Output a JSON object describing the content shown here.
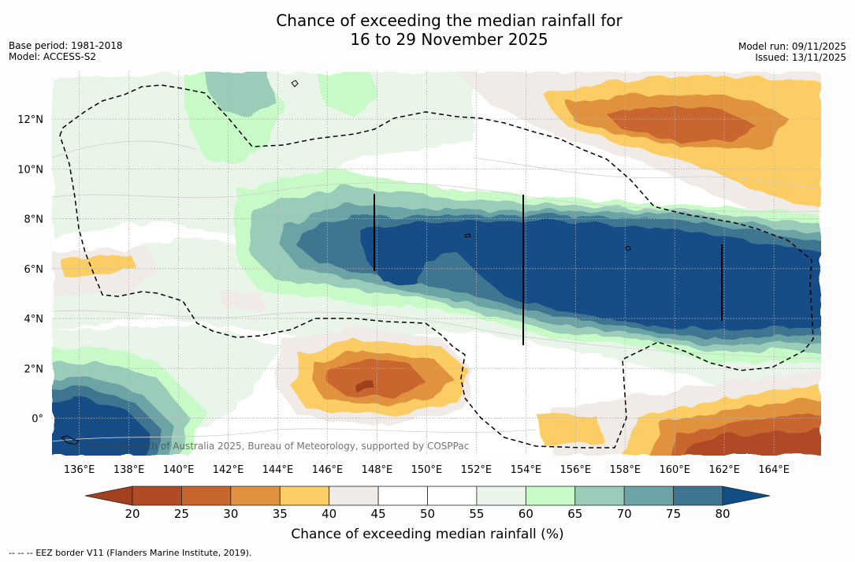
{
  "header": {
    "title_line1": "Chance of exceeding the median rainfall for",
    "title_line2": "16 to 29 November 2025",
    "base_period": "Base period: 1981-2018",
    "model": "Model: ACCESS-S2",
    "model_run": "Model run: 09/11/2025",
    "issued": "Issued: 13/11/2025"
  },
  "map": {
    "copyright": "© Commonwealth of Australia 2025, Bureau of Meteorology, supported by COSPPac",
    "lon_labels": [
      "136°E",
      "138°E",
      "140°E",
      "142°E",
      "144°E",
      "146°E",
      "148°E",
      "150°E",
      "152°E",
      "154°E",
      "156°E",
      "158°E",
      "160°E",
      "162°E",
      "164°E"
    ],
    "lat_labels": [
      "12°N",
      "10°N",
      "8°N",
      "6°N",
      "4°N",
      "2°N",
      "0°"
    ],
    "lon_range": [
      134.9,
      165.9
    ],
    "lat_range": [
      -1.5,
      13.9
    ],
    "land_color": "#222222",
    "background_color": "#ffffff"
  },
  "colorbar": {
    "title": "Chance of exceeding median rainfall (%)",
    "ticks": [
      "20",
      "25",
      "30",
      "35",
      "40",
      "45",
      "50",
      "55",
      "60",
      "65",
      "70",
      "75",
      "80"
    ],
    "colors": [
      "#a3401e",
      "#b24a26",
      "#c9652f",
      "#e0923e",
      "#fdcd65",
      "#f0ebe6",
      "#ffffff",
      "#ffffff",
      "#eaf5ea",
      "#c8fac8",
      "#9acdb9",
      "#6ca3a5",
      "#3f7591",
      "#124e86"
    ]
  },
  "footer": {
    "legend_dashes": "--  --  --",
    "legend_text": "EEZ border V11 (Flanders Marine Institute, 2019)."
  }
}
